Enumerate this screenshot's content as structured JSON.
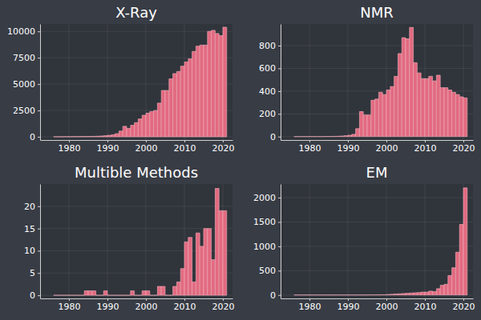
{
  "chart_data": [
    {
      "type": "histogram",
      "title": "X-Ray",
      "bins": [
        1976,
        1977,
        1978,
        1979,
        1980,
        1981,
        1982,
        1983,
        1984,
        1985,
        1986,
        1987,
        1988,
        1989,
        1990,
        1991,
        1992,
        1993,
        1994,
        1995,
        1996,
        1997,
        1998,
        1999,
        2000,
        2001,
        2002,
        2003,
        2004,
        2005,
        2006,
        2007,
        2008,
        2009,
        2010,
        2011,
        2012,
        2013,
        2014,
        2015,
        2016,
        2017,
        2018,
        2019,
        2020,
        2021
      ],
      "values": [
        10,
        15,
        15,
        20,
        20,
        25,
        25,
        30,
        35,
        40,
        45,
        60,
        80,
        110,
        150,
        200,
        300,
        550,
        1000,
        800,
        1100,
        1350,
        1700,
        2050,
        2250,
        2400,
        2500,
        3200,
        4400,
        4400,
        5500,
        6000,
        6200,
        6700,
        7100,
        7400,
        8100,
        8600,
        8700,
        8700,
        10000,
        10100,
        9800,
        9600,
        10400
      ],
      "color": "#e26a80",
      "xlim": [
        1972.5,
        2022.5
      ],
      "xticks": [
        1980,
        1990,
        2000,
        2010,
        2020
      ],
      "ylim": [
        -300,
        10700
      ],
      "yticks": [
        0,
        2500,
        5000,
        7500,
        10000
      ],
      "grid": true
    },
    {
      "type": "histogram",
      "title": "NMR",
      "bins": [
        1976,
        1977,
        1978,
        1979,
        1980,
        1981,
        1982,
        1983,
        1984,
        1985,
        1986,
        1987,
        1988,
        1989,
        1990,
        1991,
        1992,
        1993,
        1994,
        1995,
        1996,
        1997,
        1998,
        1999,
        2000,
        2001,
        2002,
        2003,
        2004,
        2005,
        2006,
        2007,
        2008,
        2009,
        2010,
        2011,
        2012,
        2013,
        2014,
        2015,
        2016,
        2017,
        2018,
        2019,
        2020,
        2021
      ],
      "values": [
        0,
        0,
        0,
        0,
        0,
        0,
        0,
        0,
        1,
        1,
        2,
        3,
        5,
        8,
        12,
        20,
        70,
        220,
        190,
        190,
        320,
        330,
        390,
        370,
        410,
        440,
        530,
        730,
        870,
        860,
        960,
        650,
        560,
        510,
        510,
        530,
        490,
        540,
        430,
        430,
        410,
        390,
        370,
        350,
        340
      ],
      "color": "#e26a80",
      "xlim": [
        1972.5,
        2022.5
      ],
      "xticks": [
        1980,
        1990,
        2000,
        2010,
        2020
      ],
      "ylim": [
        -30,
        990
      ],
      "yticks": [
        0,
        200,
        400,
        600,
        800
      ],
      "grid": true
    },
    {
      "type": "histogram",
      "title": "Multible Methods",
      "bins": [
        1976,
        1977,
        1978,
        1979,
        1980,
        1981,
        1982,
        1983,
        1984,
        1985,
        1986,
        1987,
        1988,
        1989,
        1990,
        1991,
        1992,
        1993,
        1994,
        1995,
        1996,
        1997,
        1998,
        1999,
        2000,
        2001,
        2002,
        2003,
        2004,
        2005,
        2006,
        2007,
        2008,
        2009,
        2010,
        2011,
        2012,
        2013,
        2014,
        2015,
        2016,
        2017,
        2018,
        2019,
        2020,
        2021
      ],
      "values": [
        0,
        0,
        0,
        0,
        0,
        0,
        0,
        0,
        1,
        1,
        1,
        0,
        0,
        1,
        0,
        0,
        0,
        0,
        0,
        0,
        1,
        0,
        0,
        1,
        1,
        0,
        0,
        2,
        2,
        0,
        0,
        2,
        3,
        6,
        12,
        13,
        3,
        14,
        11,
        15,
        15,
        8,
        24,
        19,
        19
      ],
      "color": "#e26a80",
      "xlim": [
        1972.5,
        2022.5
      ],
      "xticks": [
        1980,
        1990,
        2000,
        2010,
        2020
      ],
      "ylim": [
        -0.7,
        25
      ],
      "yticks": [
        0,
        5,
        10,
        15,
        20
      ],
      "grid": true
    },
    {
      "type": "histogram",
      "title": "EM",
      "bins": [
        1976,
        1977,
        1978,
        1979,
        1980,
        1981,
        1982,
        1983,
        1984,
        1985,
        1986,
        1987,
        1988,
        1989,
        1990,
        1991,
        1992,
        1993,
        1994,
        1995,
        1996,
        1997,
        1998,
        1999,
        2000,
        2001,
        2002,
        2003,
        2004,
        2005,
        2006,
        2007,
        2008,
        2009,
        2010,
        2011,
        2012,
        2013,
        2014,
        2015,
        2016,
        2017,
        2018,
        2019,
        2020,
        2021
      ],
      "values": [
        0,
        0,
        0,
        0,
        0,
        0,
        0,
        0,
        0,
        0,
        0,
        0,
        0,
        0,
        0,
        0,
        0,
        0,
        1,
        1,
        2,
        3,
        5,
        5,
        10,
        15,
        20,
        25,
        30,
        35,
        40,
        45,
        50,
        60,
        60,
        80,
        70,
        130,
        200,
        220,
        400,
        560,
        880,
        1450,
        2200
      ],
      "color": "#e26a80",
      "xlim": [
        1972.5,
        2022.5
      ],
      "xticks": [
        1980,
        1990,
        2000,
        2010,
        2020
      ],
      "ylim": [
        -70,
        2280
      ],
      "yticks": [
        0,
        500,
        1000,
        1500,
        2000
      ],
      "grid": true
    }
  ]
}
